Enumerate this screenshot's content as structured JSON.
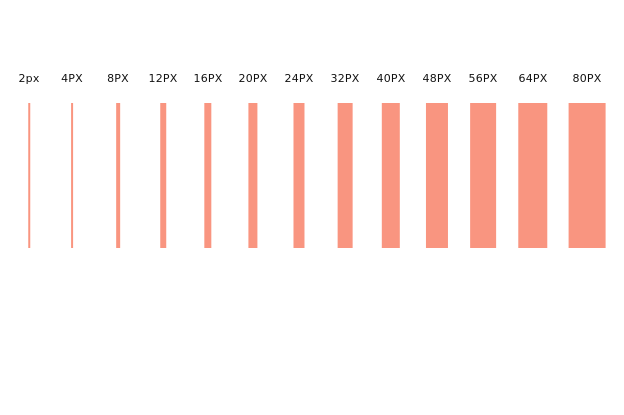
{
  "bar_color": "#f99580",
  "swatches": [
    {
      "label": "2px",
      "size": 2
    },
    {
      "label": "4PX",
      "size": 4
    },
    {
      "label": "8PX",
      "size": 8
    },
    {
      "label": "12PX",
      "size": 12
    },
    {
      "label": "16PX",
      "size": 16
    },
    {
      "label": "20PX",
      "size": 20
    },
    {
      "label": "24PX",
      "size": 24
    },
    {
      "label": "32PX",
      "size": 32
    },
    {
      "label": "40PX",
      "size": 40
    },
    {
      "label": "48PX",
      "size": 48
    },
    {
      "label": "56PX",
      "size": 56
    },
    {
      "label": "64PX",
      "size": 64
    },
    {
      "label": "80PX",
      "size": 80
    }
  ]
}
